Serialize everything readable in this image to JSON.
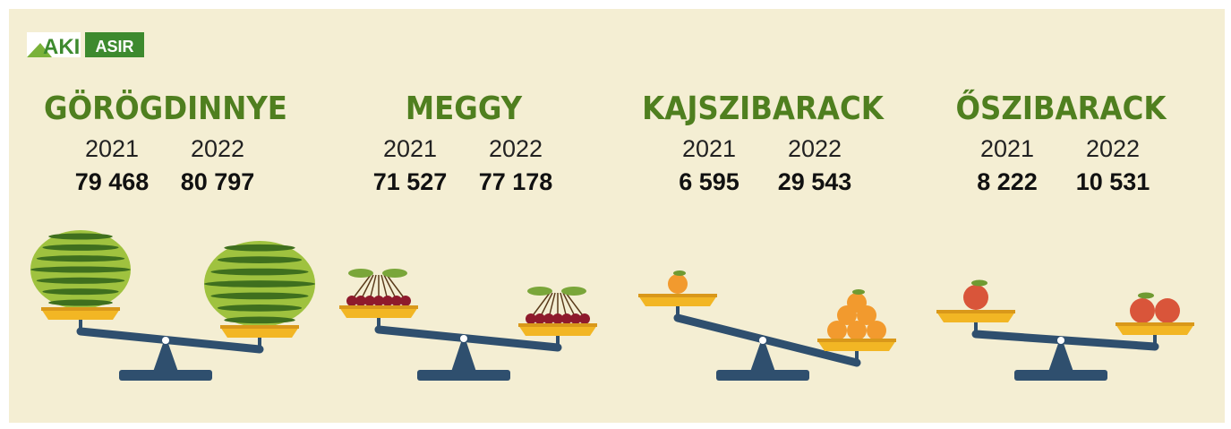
{
  "logo": {
    "left": "AKI",
    "right": "ASIR"
  },
  "items": [
    {
      "title": "GÖRÖGDINNYE",
      "years": [
        "2021",
        "2022"
      ],
      "values": [
        "79 468",
        "80 797"
      ]
    },
    {
      "title": "MEGGY",
      "years": [
        "2021",
        "2022"
      ],
      "values": [
        "71 527",
        "77 178"
      ]
    },
    {
      "title": "KAJSZIBARACK",
      "years": [
        "2021",
        "2022"
      ],
      "values": [
        "6 595",
        "29 543"
      ]
    },
    {
      "title": "ŐSZIBARACK",
      "years": [
        "2021",
        "2022"
      ],
      "values": [
        "8 222",
        "10 531"
      ]
    }
  ]
}
